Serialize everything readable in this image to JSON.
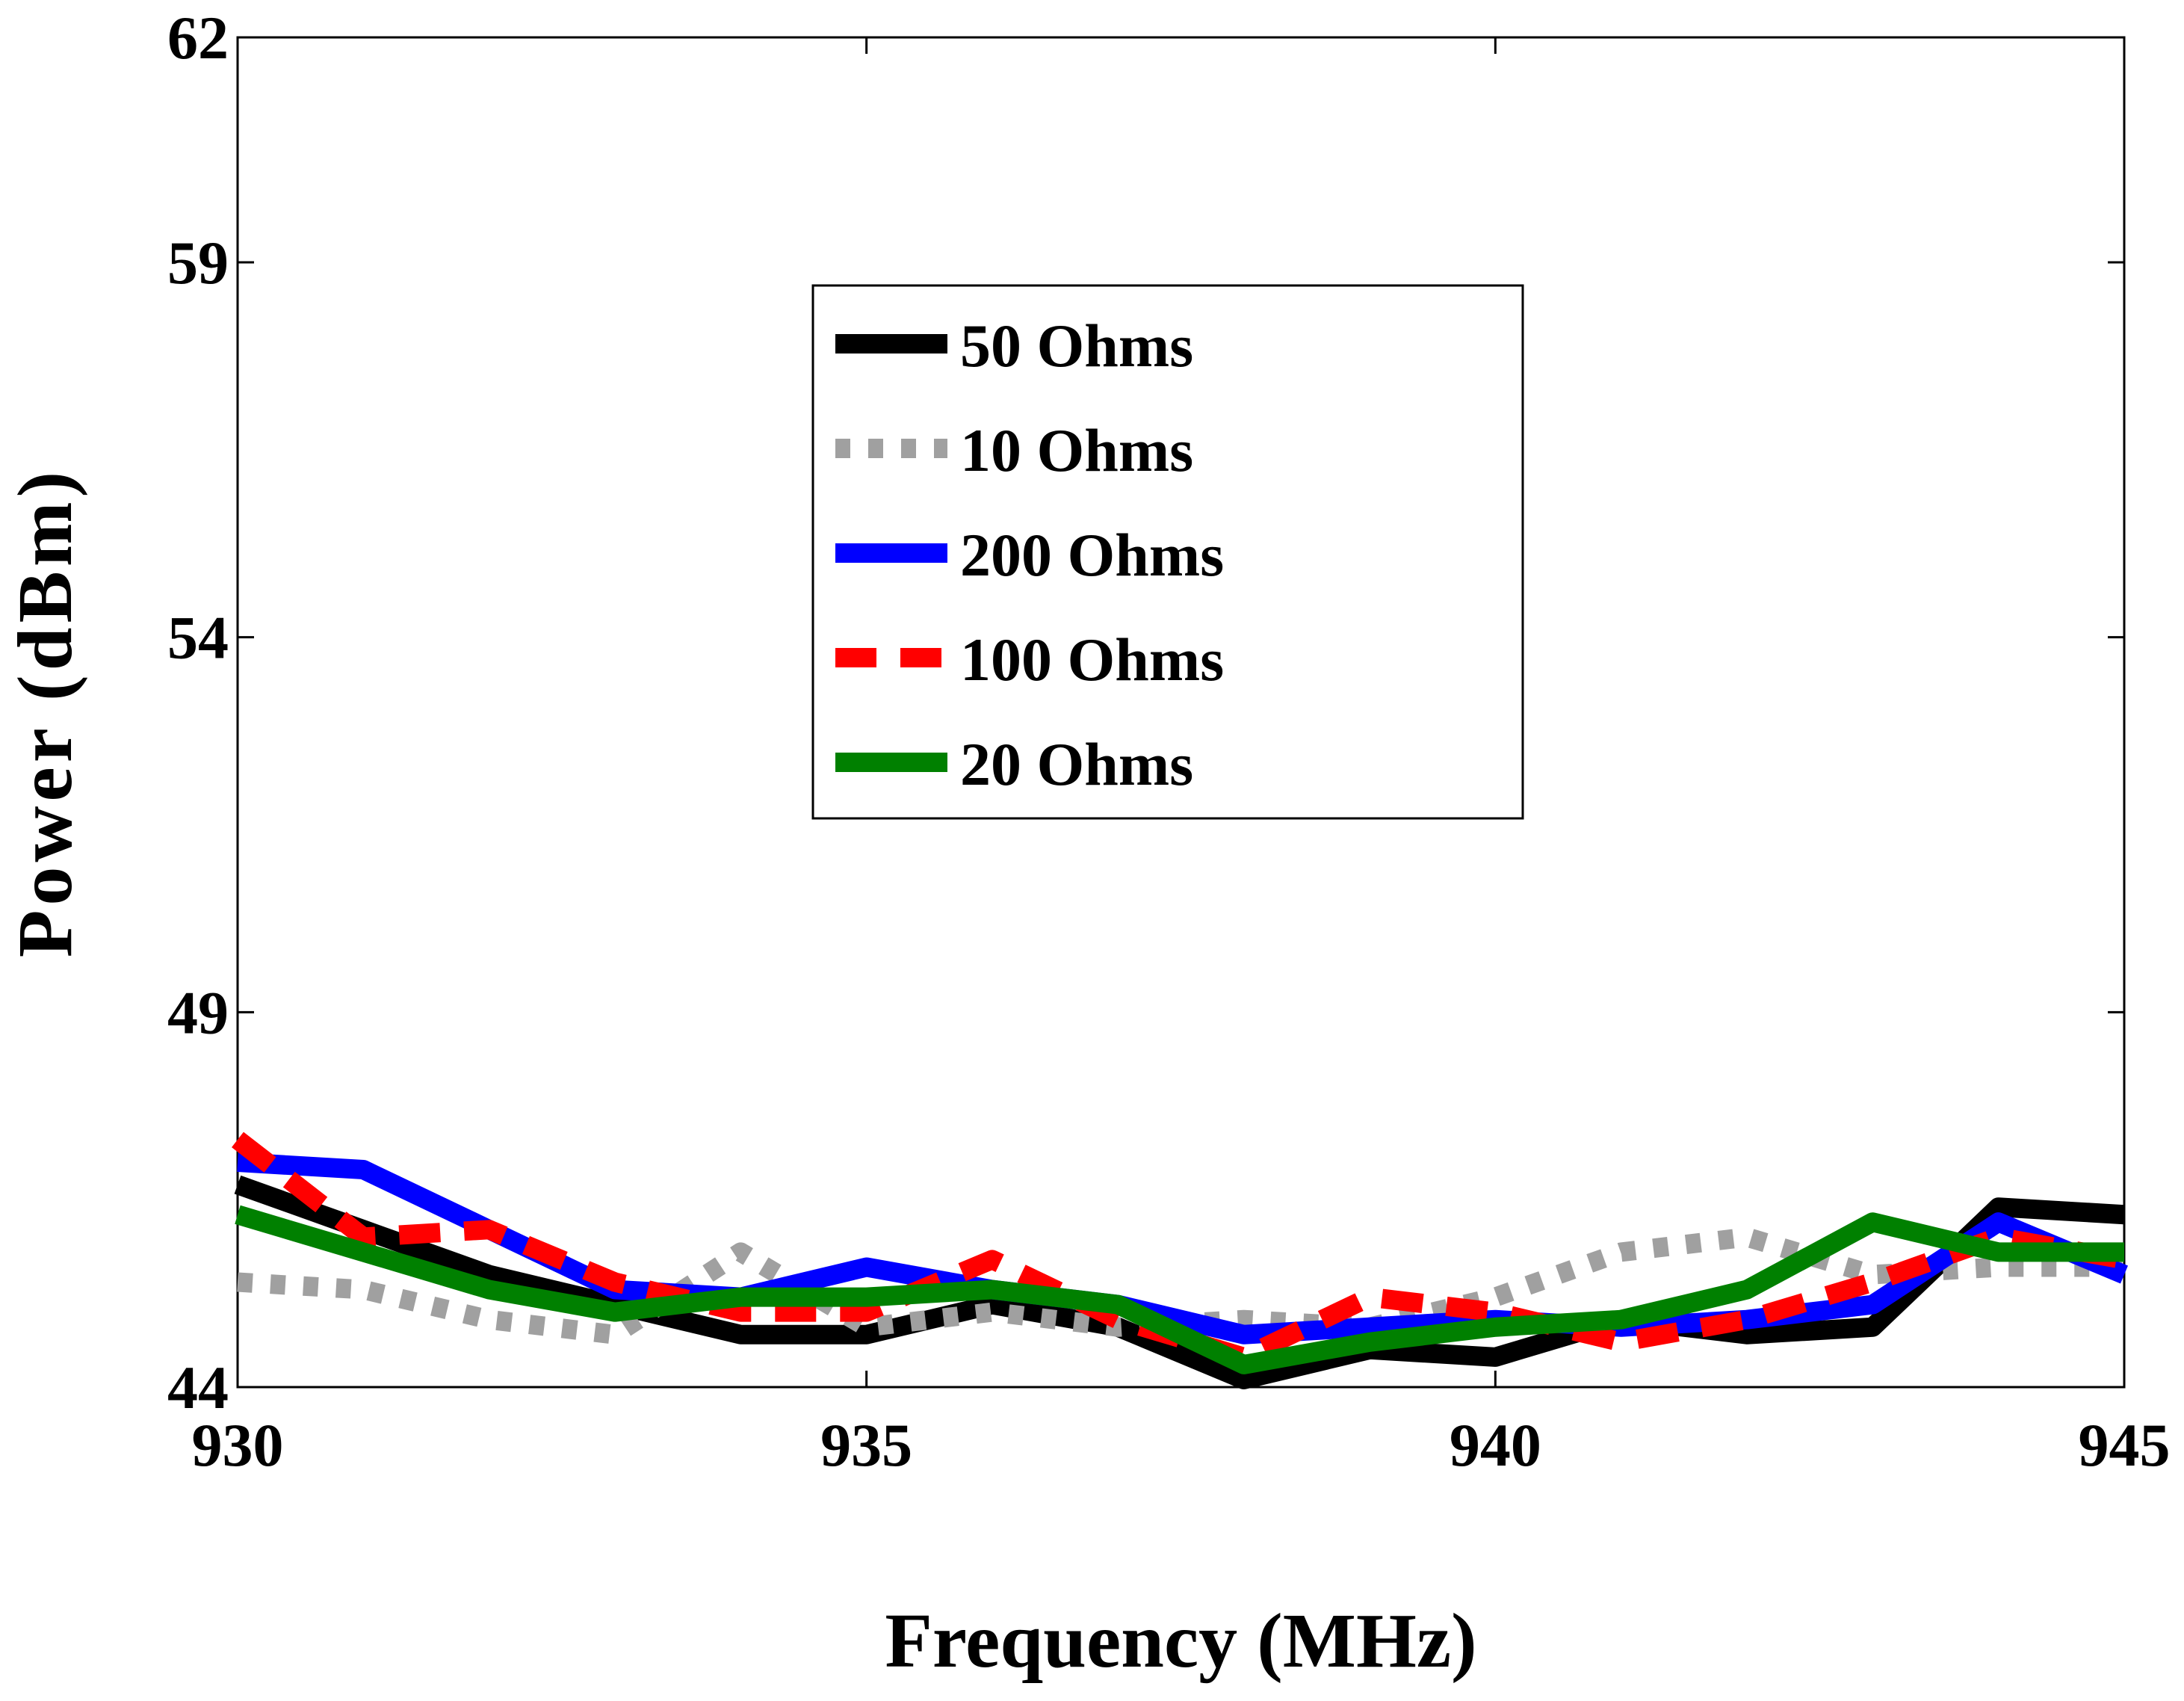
{
  "chart_data": {
    "type": "line",
    "title": "",
    "xlabel": "Frequency (MHz)",
    "ylabel": "Power (dBm)",
    "xlim": [
      930,
      945
    ],
    "ylim": [
      44,
      62
    ],
    "xticks": [
      930,
      935,
      940,
      945
    ],
    "yticks": [
      44,
      49,
      54,
      59,
      62
    ],
    "grid": false,
    "legend_position": "upper-center",
    "x": [
      930,
      931,
      932,
      933,
      934,
      935,
      936,
      937,
      938,
      939,
      940,
      941,
      942,
      943,
      944,
      945
    ],
    "series": [
      {
        "name": "50 Ohms",
        "color": "#000000",
        "style": "solid",
        "values": [
          46.7,
          46.1,
          45.5,
          45.1,
          44.7,
          44.7,
          45.1,
          44.8,
          44.1,
          44.5,
          44.4,
          44.9,
          44.7,
          44.8,
          46.4,
          46.3
        ]
      },
      {
        "name": "10 Ohms",
        "color": "#a0a0a0",
        "style": "dotted",
        "values": [
          45.4,
          45.3,
          44.9,
          44.7,
          45.8,
          44.8,
          45.0,
          44.8,
          44.9,
          44.8,
          45.2,
          45.8,
          46.0,
          45.5,
          45.6,
          45.6
        ]
      },
      {
        "name": "200 Ohms",
        "color": "#0000ff",
        "style": "solid",
        "values": [
          47.0,
          46.9,
          46.1,
          45.3,
          45.2,
          45.6,
          45.3,
          45.1,
          44.7,
          44.8,
          44.9,
          44.8,
          44.9,
          45.1,
          46.2,
          45.5
        ]
      },
      {
        "name": "100 Ohms",
        "color": "#ff0000",
        "style": "dashed",
        "values": [
          47.3,
          46.0,
          46.1,
          45.4,
          45.0,
          45.0,
          45.7,
          44.9,
          44.4,
          45.2,
          45.0,
          44.6,
          44.9,
          45.4,
          46.0,
          45.7
        ]
      },
      {
        "name": "20 Ohms",
        "color": "#008000",
        "style": "solid",
        "values": [
          46.3,
          45.8,
          45.3,
          45.0,
          45.2,
          45.2,
          45.3,
          45.1,
          44.3,
          44.6,
          44.8,
          44.9,
          45.3,
          46.2,
          45.8,
          45.8
        ]
      }
    ]
  }
}
